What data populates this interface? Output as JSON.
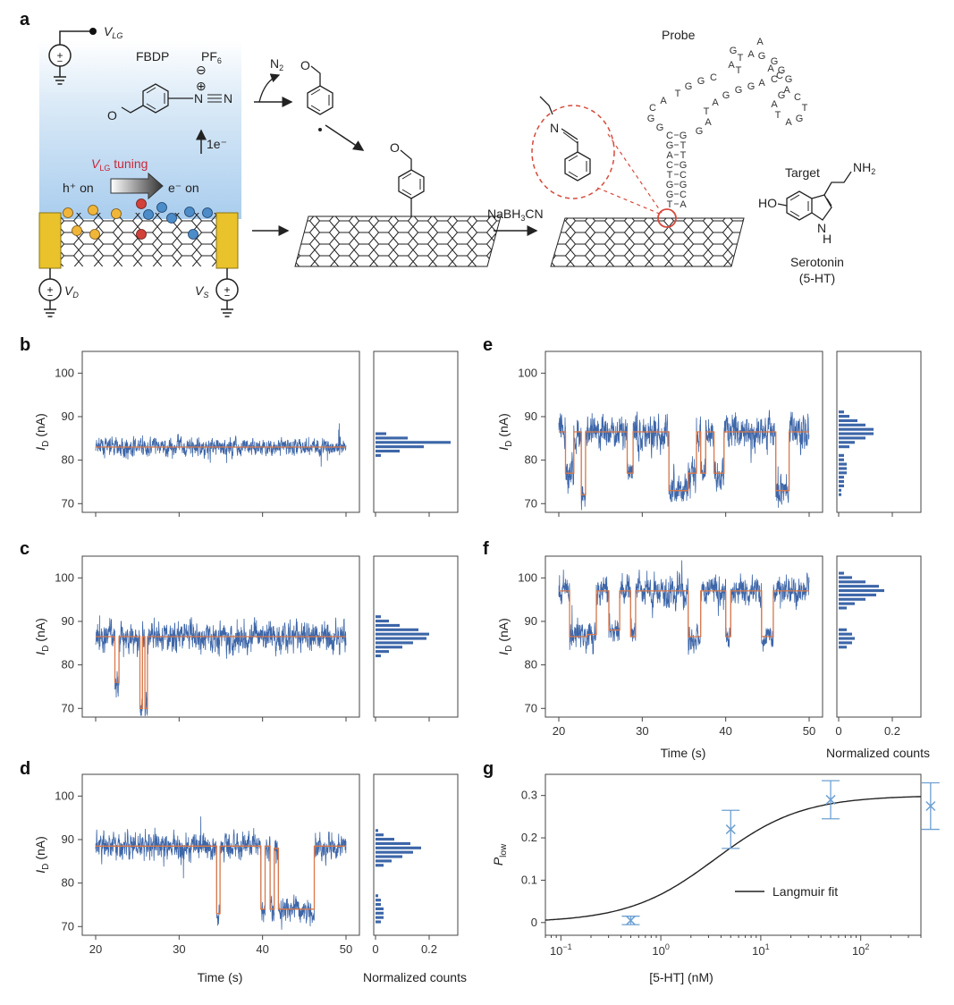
{
  "panels": {
    "a": {
      "label": "a",
      "VLG": "V",
      "VLG_sub": "LG",
      "FBDP": "FBDP",
      "PF6": "PF",
      "PF6_sub": "6",
      "minus": "⊖",
      "plus": "⊕",
      "N_triple": "N",
      "N2": "N",
      "N2_sub": "2",
      "electron": "1e⁻",
      "vlg_tuning_V": "V",
      "vlg_tuning_sub": "LG",
      "vlg_tuning_text": " tuning",
      "h_on": "h⁺ on",
      "e_on": "e⁻ on",
      "VD": "V",
      "VD_sub": "D",
      "VS": "V",
      "VS_sub": "S",
      "O": "O",
      "reducer": "NaBH",
      "reducer_sub": "3",
      "reducer_end": "CN",
      "imine_N": "N",
      "probe": "Probe",
      "target": "Target",
      "NH2": "NH",
      "NH2_sub": "2",
      "HO": "HO",
      "ring_N": "N",
      "ring_H": "H",
      "serotonin": "Serotonin",
      "serotonin_abbr": "(5-HT)",
      "stem_left": [
        "T",
        "G",
        "G",
        "T",
        "C",
        "A",
        "G",
        "C"
      ],
      "stem_right": [
        "A",
        "C",
        "G",
        "C",
        "G",
        "T",
        "T",
        "G"
      ],
      "loop_left": [
        "G",
        "G",
        "C",
        "A",
        "T",
        "G",
        "G",
        "C"
      ],
      "loop_right": [
        "G",
        "A",
        "T",
        "A",
        "G",
        "G",
        "G",
        "A",
        "C"
      ],
      "top_loop": [
        "A",
        "T",
        "A",
        "G",
        "G",
        "G",
        "G",
        "C",
        "A",
        "T",
        "G",
        "A"
      ],
      "right_loop": [
        "A",
        "C",
        "T",
        "G",
        "A",
        "T",
        "A",
        "G"
      ]
    }
  },
  "charts": {
    "b": {
      "label": "b"
    },
    "c": {
      "label": "c"
    },
    "d": {
      "label": "d"
    },
    "e": {
      "label": "e"
    },
    "f": {
      "label": "f"
    },
    "g": {
      "label": "g"
    }
  },
  "axes": {
    "ylabel_main": "I",
    "ylabel_sub": "D",
    "ylabel_unit": " (nA)",
    "yticks": [
      "70",
      "80",
      "90",
      "100"
    ],
    "xticks": [
      "20",
      "30",
      "40",
      "50"
    ],
    "hist_ticks": [
      "0",
      "0.2"
    ],
    "time_label": "Time (s)",
    "counts_label": "Normalized counts",
    "g_ylabel": "P",
    "g_ylabel_sub": "low",
    "g_yticks": [
      "0",
      "0.1",
      "0.2",
      "0.3"
    ],
    "g_xlabel": "[5-HT] (nM)",
    "g_xticks": [
      {
        "base": "10",
        "exp": "−1"
      },
      {
        "base": "10",
        "exp": "0"
      },
      {
        "base": "10",
        "exp": "1"
      },
      {
        "base": "10",
        "exp": "2"
      }
    ],
    "legend": "Langmuir fit"
  },
  "colors": {
    "trace": "#3d66a8",
    "fit": "#d9784a",
    "hist": "#3d66a8",
    "g_points": "#6ea0d2",
    "electrode": "#e9c22c",
    "electrolyte_top": "#b7d5f0",
    "dashed_red": "#d64a3c"
  },
  "chart_data": [
    {
      "type": "line",
      "panel": "b",
      "x_range": [
        20,
        50
      ],
      "ylim": [
        68,
        105
      ],
      "ylabel": "I_D (nA)",
      "levels": [
        83
      ],
      "histogram": {
        "bins": [
          81,
          82,
          83,
          84,
          85,
          86
        ],
        "counts": [
          0.02,
          0.09,
          0.18,
          0.28,
          0.12,
          0.04
        ]
      }
    },
    {
      "type": "line",
      "panel": "c",
      "x_range": [
        20,
        50
      ],
      "ylim": [
        68,
        105
      ],
      "ylabel": "I_D (nA)",
      "levels": [
        86.5,
        76
      ],
      "histogram": {
        "bins": [
          82,
          83,
          84,
          85,
          86,
          87,
          88,
          89,
          90,
          91
        ],
        "counts": [
          0.02,
          0.05,
          0.1,
          0.14,
          0.19,
          0.2,
          0.16,
          0.09,
          0.05,
          0.02
        ]
      }
    },
    {
      "type": "line",
      "panel": "d",
      "x_range": [
        20,
        50
      ],
      "xlabel": "Time (s)",
      "ylim": [
        68,
        105
      ],
      "ylabel": "I_D (nA)",
      "levels": [
        88.5,
        74
      ],
      "histogram": {
        "bins": [
          71,
          72,
          73,
          74,
          75,
          76,
          77,
          84,
          85,
          86,
          87,
          88,
          89,
          90,
          91,
          92
        ],
        "counts": [
          0.02,
          0.03,
          0.03,
          0.03,
          0.02,
          0.02,
          0.01,
          0.03,
          0.06,
          0.1,
          0.14,
          0.17,
          0.13,
          0.07,
          0.03,
          0.01
        ]
      }
    },
    {
      "type": "line",
      "panel": "e",
      "x_range": [
        20,
        50
      ],
      "ylim": [
        68,
        105
      ],
      "ylabel": "I_D (nA)",
      "levels": [
        86.5,
        77,
        73
      ],
      "histogram": {
        "bins": [
          72,
          73,
          74,
          75,
          76,
          77,
          78,
          79,
          80,
          81,
          83,
          84,
          85,
          86,
          87,
          88,
          89,
          90,
          91
        ],
        "counts": [
          0.01,
          0.01,
          0.02,
          0.02,
          0.02,
          0.03,
          0.03,
          0.03,
          0.02,
          0.02,
          0.04,
          0.06,
          0.1,
          0.13,
          0.13,
          0.1,
          0.07,
          0.04,
          0.02
        ]
      }
    },
    {
      "type": "line",
      "panel": "f",
      "x_range": [
        20,
        50
      ],
      "xlabel": "Time (s)",
      "ylim": [
        68,
        105
      ],
      "ylabel": "I_D (nA)",
      "levels": [
        97,
        86.5
      ],
      "histogram": {
        "bins": [
          84,
          85,
          86,
          87,
          88,
          93,
          94,
          95,
          96,
          97,
          98,
          99,
          100,
          101
        ],
        "counts": [
          0.03,
          0.05,
          0.06,
          0.05,
          0.03,
          0.03,
          0.06,
          0.1,
          0.14,
          0.17,
          0.15,
          0.1,
          0.05,
          0.02
        ]
      }
    },
    {
      "type": "scatter",
      "panel": "g",
      "xlabel": "[5-HT] (nM)",
      "ylabel": "P_low",
      "xscale": "log",
      "xlim": [
        0.07,
        400
      ],
      "ylim": [
        -0.03,
        0.35
      ],
      "x": [
        0.5,
        5,
        50,
        500
      ],
      "y": [
        0.005,
        0.22,
        0.29,
        0.275
      ],
      "yerr": [
        0.01,
        0.045,
        0.045,
        0.055
      ],
      "fit": {
        "name": "Langmuir fit",
        "Pmax": 0.3,
        "Kd": 3.5
      }
    }
  ]
}
